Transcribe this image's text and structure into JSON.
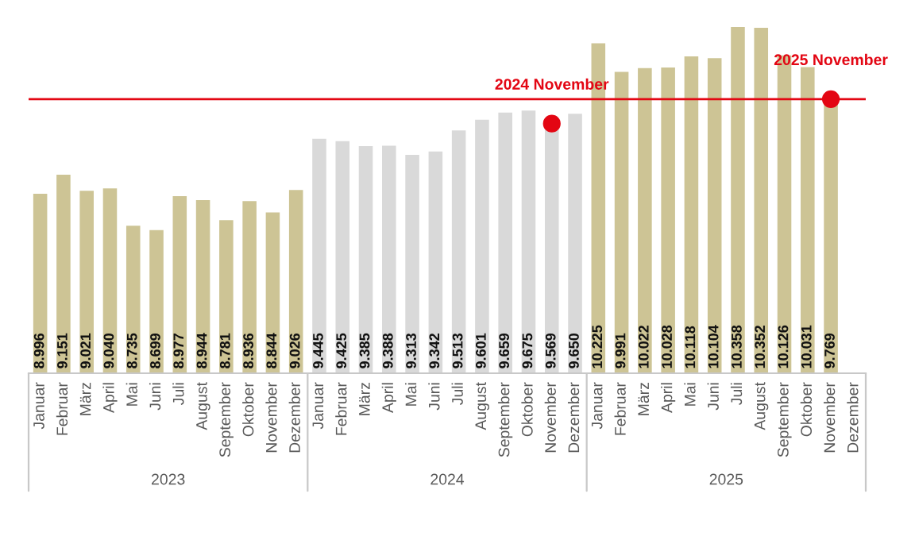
{
  "chart_data": {
    "type": "bar",
    "categories": [
      "Januar",
      "Februar",
      "März",
      "April",
      "Mai",
      "Juni",
      "Juli",
      "August",
      "September",
      "Oktober",
      "November",
      "Dezember",
      "Januar",
      "Februar",
      "März",
      "April",
      "Mai",
      "Juni",
      "Juli",
      "August",
      "September",
      "Oktober",
      "November",
      "Dezember",
      "Januar",
      "Februar",
      "März",
      "April",
      "Mai",
      "Juni",
      "Juli",
      "August",
      "September",
      "Oktober",
      "November",
      "Dezember"
    ],
    "series": [
      {
        "values": [
          8996,
          9151,
          9021,
          9040,
          8735,
          8699,
          8977,
          8944,
          8781,
          8936,
          8844,
          9026,
          9445,
          9425,
          9385,
          9388,
          9313,
          9342,
          9513,
          9601,
          9659,
          9675,
          9569,
          9650,
          10225,
          9991,
          10022,
          10028,
          10118,
          10104,
          10358,
          10352,
          10126,
          10031,
          9769,
          null
        ],
        "value_labels": [
          "8.996",
          "9.151",
          "9.021",
          "9.040",
          "8.735",
          "8.699",
          "8.977",
          "8.944",
          "8.781",
          "8.936",
          "8.844",
          "9.026",
          "9.445",
          "9.425",
          "9.385",
          "9.388",
          "9.313",
          "9.342",
          "9.513",
          "9.601",
          "9.659",
          "9.675",
          "9.569",
          "9.650",
          "10.225",
          "9.991",
          "10.022",
          "10.028",
          "10.118",
          "10.104",
          "10.358",
          "10.352",
          "10.126",
          "10.031",
          "9.769",
          null
        ],
        "colors": [
          "#cdc495",
          "#cdc495",
          "#cdc495",
          "#cdc495",
          "#cdc495",
          "#cdc495",
          "#cdc495",
          "#cdc495",
          "#cdc495",
          "#cdc495",
          "#cdc495",
          "#cdc495",
          "#d9d9d9",
          "#d9d9d9",
          "#d9d9d9",
          "#d9d9d9",
          "#d9d9d9",
          "#d9d9d9",
          "#d9d9d9",
          "#d9d9d9",
          "#d9d9d9",
          "#d9d9d9",
          "#d9d9d9",
          "#d9d9d9",
          "#cdc495",
          "#cdc495",
          "#cdc495",
          "#cdc495",
          "#cdc495",
          "#cdc495",
          "#cdc495",
          "#cdc495",
          "#cdc495",
          "#cdc495",
          "#cdc495",
          "#cdc495"
        ]
      },
      {
        "type": "scatter",
        "color": "#e30613",
        "values": [
          null,
          null,
          null,
          null,
          null,
          null,
          null,
          null,
          null,
          null,
          null,
          null,
          null,
          null,
          null,
          null,
          null,
          null,
          null,
          null,
          null,
          null,
          9569,
          null,
          null,
          null,
          null,
          null,
          null,
          null,
          null,
          null,
          null,
          null,
          9769,
          null
        ],
        "value_labels": [
          null,
          null,
          null,
          null,
          null,
          null,
          null,
          null,
          null,
          null,
          null,
          null,
          null,
          null,
          null,
          null,
          null,
          null,
          null,
          null,
          null,
          null,
          "2024 November",
          null,
          null,
          null,
          null,
          null,
          null,
          null,
          null,
          null,
          null,
          null,
          "2025 November",
          null
        ]
      }
    ],
    "ylim": [
      7530,
      10358
    ],
    "tick_labels": "x",
    "ref_lines": [
      {
        "axis": "y",
        "value": 9769,
        "color": "#e30613"
      }
    ],
    "annotations": [
      "2023",
      "2024",
      "2025"
    ],
    "grid": false,
    "legend": false
  }
}
